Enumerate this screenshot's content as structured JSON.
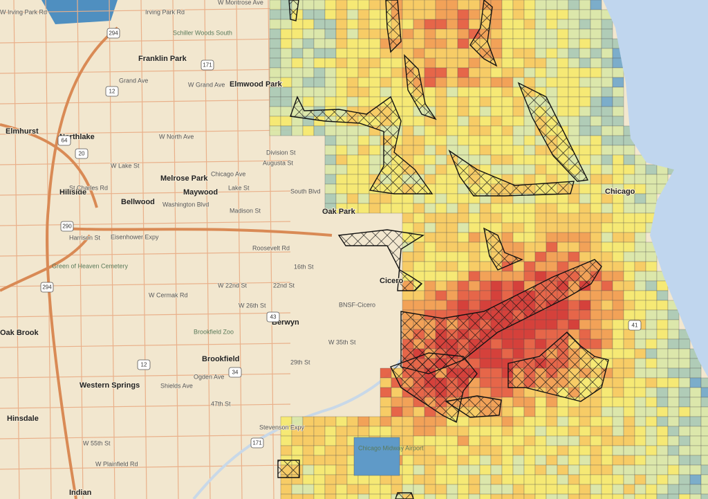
{
  "places": [
    "Franklin Park",
    "Elmwood Park",
    "Northlake",
    "Elmhurst",
    "Melrose Park",
    "Maywood",
    "Hillside",
    "Bellwood",
    "Oak Park",
    "Cicero",
    "Berwyn",
    "Brookfield",
    "Western Springs",
    "Oak Brook",
    "Hinsdale",
    "Indian",
    "Chicago"
  ],
  "pois": [
    "Schiller Woods South",
    "Green of Heaven Cemetery",
    "Brookfield Zoo",
    "Chicago Midway Airport"
  ],
  "streets": [
    "W Irving Park Rd",
    "Irving Park Rd",
    "W Montrose Ave",
    "Grand Ave",
    "W Grand Ave",
    "W North Ave",
    "Division St",
    "Augusta St",
    "Chicago Ave",
    "W Lake St",
    "Lake St",
    "St Charles Rd",
    "South Blvd",
    "Washington Blvd",
    "Madison St",
    "Roosevelt Rd",
    "16th St",
    "W 22nd St",
    "22nd St",
    "W Cermak Rd",
    "W 26th St",
    "W 35th St",
    "29th St",
    "Ogden Ave",
    "Shields Ave",
    "47th St",
    "W 55th St",
    "W Plainfield Rd",
    "BNSF-Cicero",
    "Harrison St",
    "Eisenhower Expy",
    "Stevenson Expy"
  ],
  "shields": [
    "294",
    "171",
    "12",
    "64",
    "20",
    "290",
    "294",
    "43",
    "34",
    "12",
    "171",
    "41"
  ]
}
